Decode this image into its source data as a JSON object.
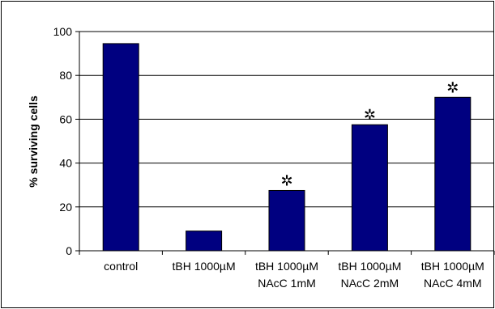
{
  "chart_data": {
    "type": "bar",
    "categories": [
      [
        "control"
      ],
      [
        "tBH 1000µM"
      ],
      [
        "tBH 1000µM",
        "NAcC 1mM"
      ],
      [
        "tBH 1000µM",
        "NAcC 2mM"
      ],
      [
        "tBH 1000µM",
        "NAcC 4mM"
      ]
    ],
    "values": [
      94.5,
      9,
      27.5,
      57.5,
      70
    ],
    "significance": [
      false,
      false,
      true,
      true,
      true
    ],
    "marker_symbol": "✲",
    "title": "",
    "xlabel": "",
    "ylabel": "% surviving cells",
    "ylim": [
      0,
      100
    ],
    "yticks": [
      0,
      20,
      40,
      60,
      80,
      100
    ],
    "grid": true,
    "legend": "none",
    "bar_color": "#000080",
    "bar_edge_color": "#000000",
    "grid_color": "#000000"
  }
}
